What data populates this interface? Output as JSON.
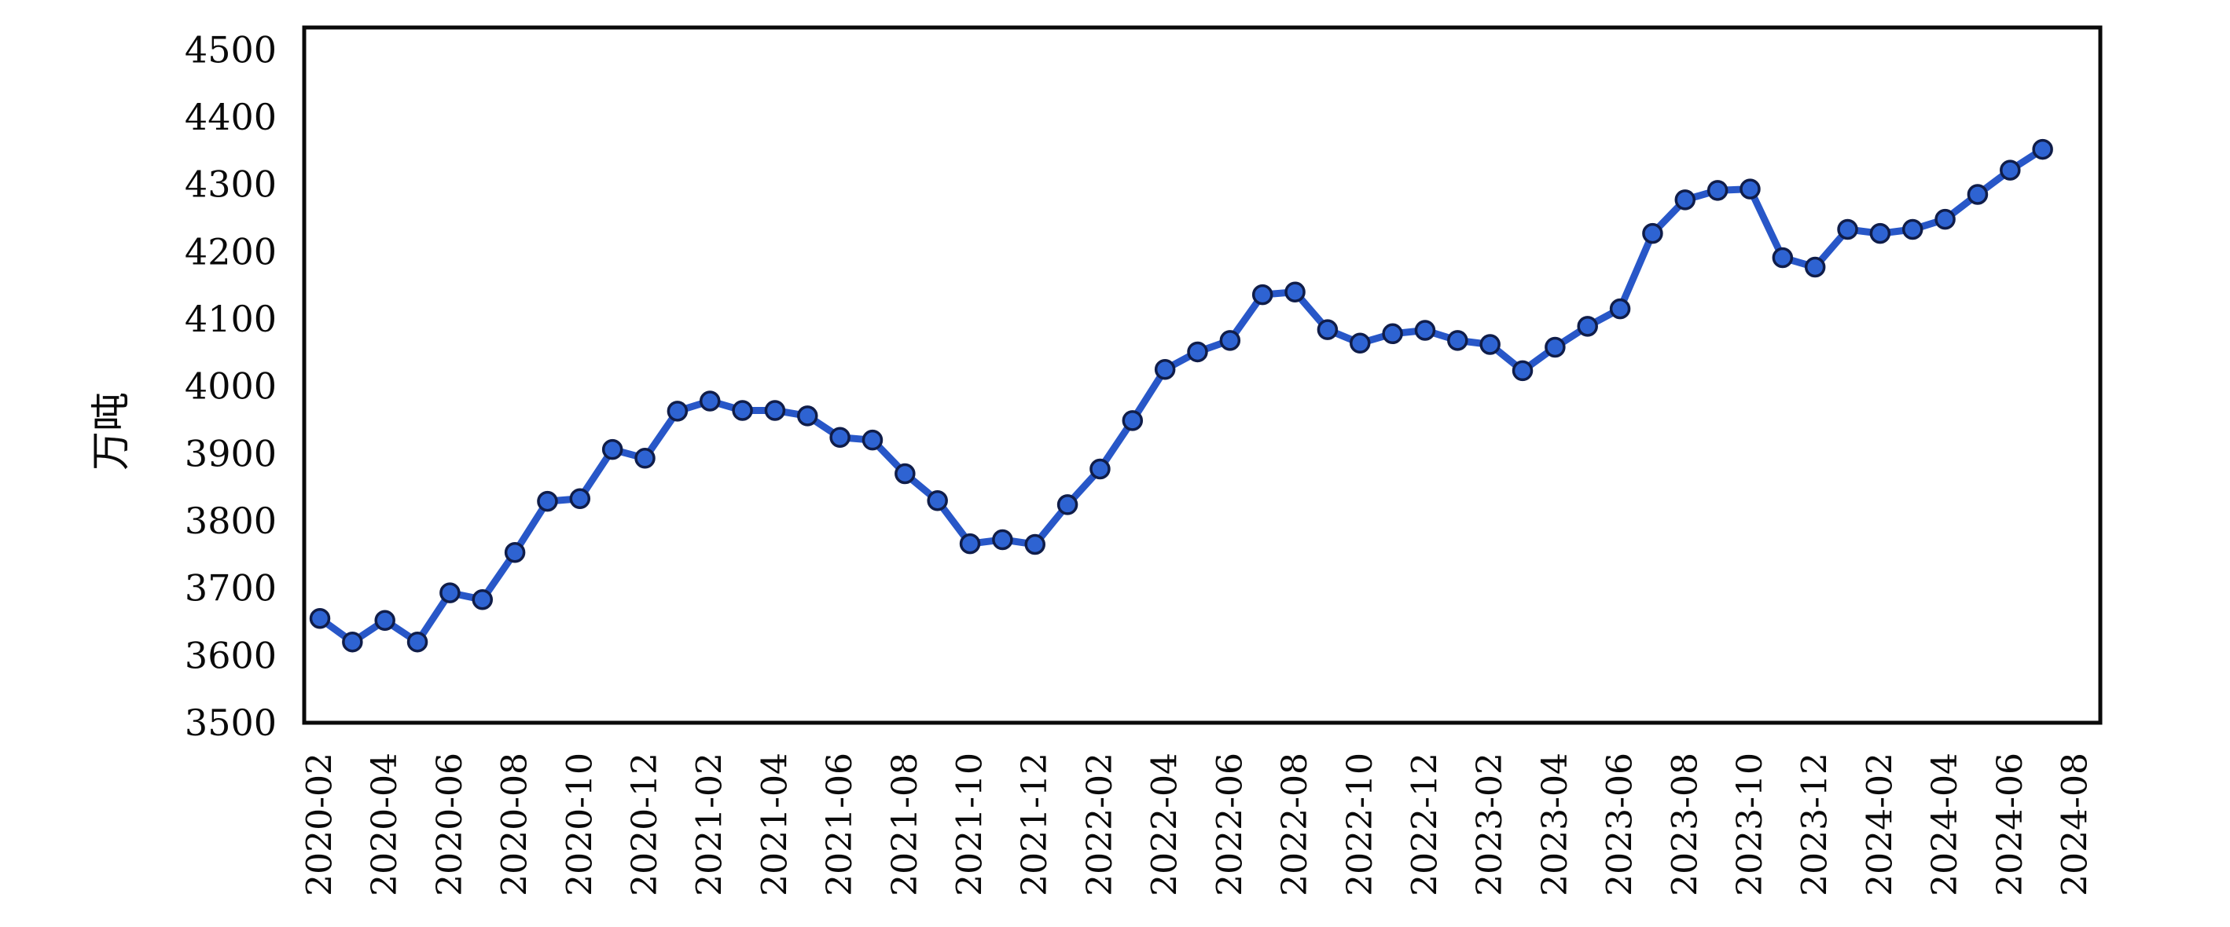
{
  "chart_data": {
    "type": "line",
    "title": "",
    "ylabel": "万吨",
    "xlabel": "",
    "grid": false,
    "legend": null,
    "ylim": [
      3500,
      4533
    ],
    "y_ticks": [
      3500,
      3600,
      3700,
      3800,
      3900,
      4000,
      4100,
      4200,
      4300,
      4400,
      4500
    ],
    "x_tick_labels": [
      "2020-02",
      "2020-04",
      "2020-06",
      "2020-08",
      "2020-10",
      "2020-12",
      "2021-02",
      "2021-04",
      "2021-06",
      "2021-08",
      "2021-10",
      "2021-12",
      "2022-02",
      "2022-04",
      "2022-06",
      "2022-08",
      "2022-10",
      "2022-12",
      "2023-02",
      "2023-04",
      "2023-06",
      "2023-08",
      "2023-10",
      "2023-12",
      "2024-02",
      "2024-04",
      "2024-06",
      "2024-08"
    ],
    "x": [
      "2020-02",
      "2020-03",
      "2020-04",
      "2020-05",
      "2020-06",
      "2020-07",
      "2020-08",
      "2020-09",
      "2020-10",
      "2020-11",
      "2020-12",
      "2021-01",
      "2021-02",
      "2021-03",
      "2021-04",
      "2021-05",
      "2021-06",
      "2021-07",
      "2021-08",
      "2021-09",
      "2021-10",
      "2021-11",
      "2021-12",
      "2022-01",
      "2022-02",
      "2022-03",
      "2022-04",
      "2022-05",
      "2022-06",
      "2022-07",
      "2022-08",
      "2022-09",
      "2022-10",
      "2022-11",
      "2022-12",
      "2023-01",
      "2023-02",
      "2023-03",
      "2023-04",
      "2023-05",
      "2023-06",
      "2023-07",
      "2023-08",
      "2023-09",
      "2023-10",
      "2023-11",
      "2023-12",
      "2024-01",
      "2024-02",
      "2024-03",
      "2024-04",
      "2024-05",
      "2024-06",
      "2024-07"
    ],
    "values": [
      3655,
      3620,
      3652,
      3620,
      3693,
      3683,
      3753,
      3829,
      3833,
      3906,
      3893,
      3963,
      3978,
      3964,
      3964,
      3956,
      3924,
      3920,
      3870,
      3830,
      3766,
      3772,
      3765,
      3824,
      3877,
      3949,
      4025,
      4051,
      4068,
      4136,
      4140,
      4084,
      4064,
      4078,
      4083,
      4068,
      4062,
      4023,
      4058,
      4089,
      4115,
      4227,
      4277,
      4291,
      4293,
      4191,
      4177,
      4233,
      4227,
      4233,
      4248,
      4285,
      4321,
      4352
    ],
    "line_color": "#2857c8",
    "marker_color": "#2e63d2",
    "marker_edge_color": "#101d49",
    "axis_color": "#0a0a0a",
    "background_color": "#ffffff"
  }
}
